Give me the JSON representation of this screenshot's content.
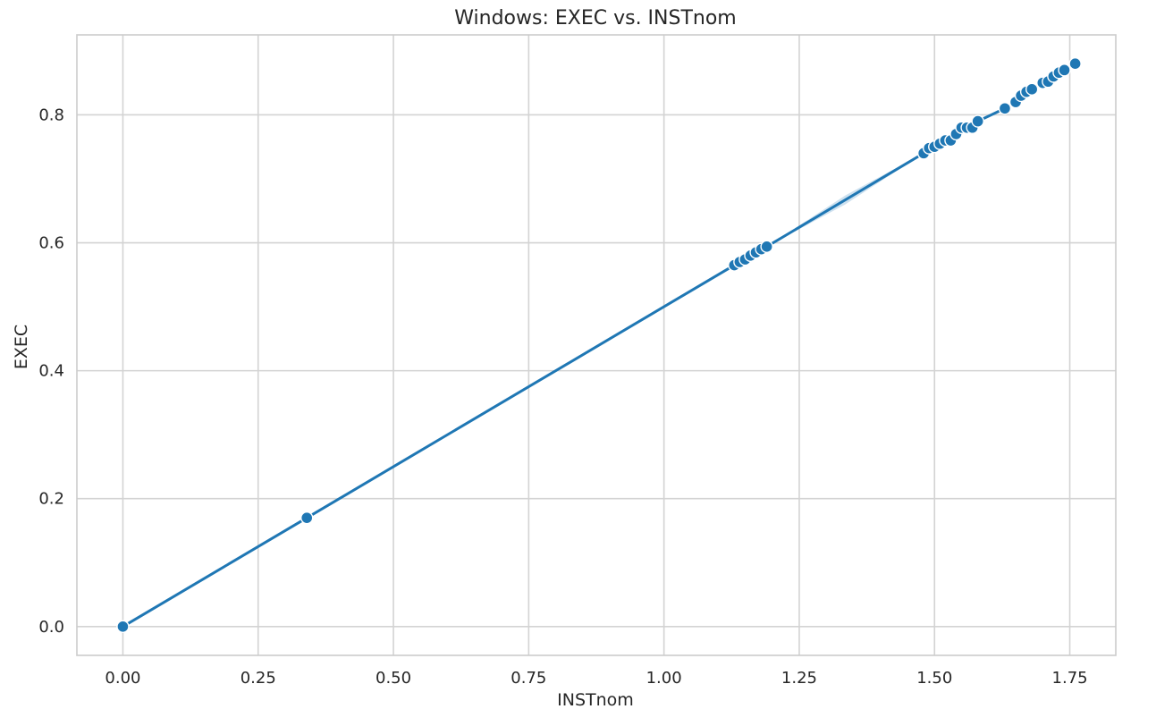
{
  "chart_data": {
    "type": "line",
    "title": "Windows: EXEC vs. INSTnom",
    "xlabel": "INSTnom",
    "ylabel": "EXEC",
    "xlim": [
      -0.085,
      1.835
    ],
    "ylim": [
      -0.045,
      0.925
    ],
    "xticks": [
      0.0,
      0.25,
      0.5,
      0.75,
      1.0,
      1.25,
      1.5,
      1.75
    ],
    "xtick_labels": [
      "0.00",
      "0.25",
      "0.50",
      "0.75",
      "1.00",
      "1.25",
      "1.50",
      "1.75"
    ],
    "yticks": [
      0.0,
      0.2,
      0.4,
      0.6,
      0.8
    ],
    "ytick_labels": [
      "0.0",
      "0.2",
      "0.4",
      "0.6",
      "0.8"
    ],
    "grid": true,
    "legend": "none",
    "colors": {
      "series": "#1f77b4",
      "grid": "#d3d3d3",
      "background": "#ffffff"
    },
    "series": [
      {
        "x": [
          0.0,
          0.34,
          1.13,
          1.14,
          1.15,
          1.16,
          1.17,
          1.18,
          1.19,
          1.48,
          1.49,
          1.5,
          1.51,
          1.52,
          1.53,
          1.54,
          1.55,
          1.56,
          1.57,
          1.58,
          1.63,
          1.65,
          1.66,
          1.67,
          1.68,
          1.7,
          1.71,
          1.72,
          1.73,
          1.74,
          1.76
        ],
        "y": [
          0.0,
          0.17,
          0.565,
          0.57,
          0.574,
          0.58,
          0.585,
          0.59,
          0.594,
          0.74,
          0.748,
          0.75,
          0.755,
          0.76,
          0.76,
          0.77,
          0.78,
          0.78,
          0.78,
          0.79,
          0.81,
          0.82,
          0.83,
          0.836,
          0.84,
          0.85,
          0.852,
          0.86,
          0.866,
          0.87,
          0.88
        ]
      }
    ]
  }
}
